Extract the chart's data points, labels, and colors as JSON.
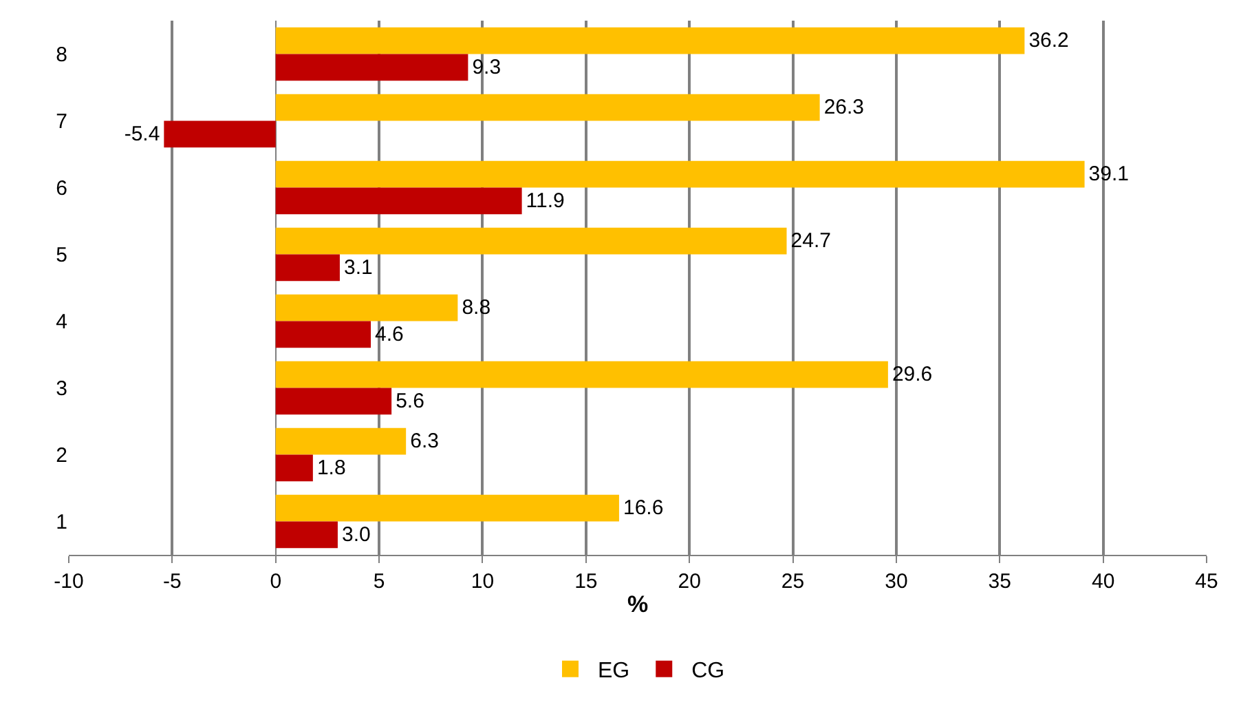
{
  "chart_data": {
    "type": "bar",
    "orientation": "horizontal",
    "xlabel": "%",
    "categories": [
      "8",
      "7",
      "6",
      "5",
      "4",
      "3",
      "2",
      "1"
    ],
    "series": [
      {
        "name": "EG",
        "color": "#ffc000",
        "values": [
          36.2,
          26.3,
          39.1,
          24.7,
          8.8,
          29.6,
          6.3,
          16.6
        ],
        "value_labels": [
          "36.2",
          "26.3",
          "39.1",
          "24.7",
          "8.8",
          "29.6",
          "6.3",
          "16.6"
        ]
      },
      {
        "name": "CG",
        "color": "#c00000",
        "values": [
          9.3,
          -5.4,
          11.9,
          3.1,
          4.6,
          5.6,
          1.8,
          3.0
        ],
        "value_labels": [
          "9.3",
          "-5.4",
          "11.9",
          "3.1",
          "4.6",
          "5.6",
          "1.8",
          "3.0"
        ]
      }
    ],
    "xlim": [
      -10,
      45
    ],
    "xticks": [
      -10,
      -5,
      0,
      5,
      10,
      15,
      20,
      25,
      30,
      35,
      40,
      45
    ],
    "grid": "x",
    "legend": "bottom"
  }
}
